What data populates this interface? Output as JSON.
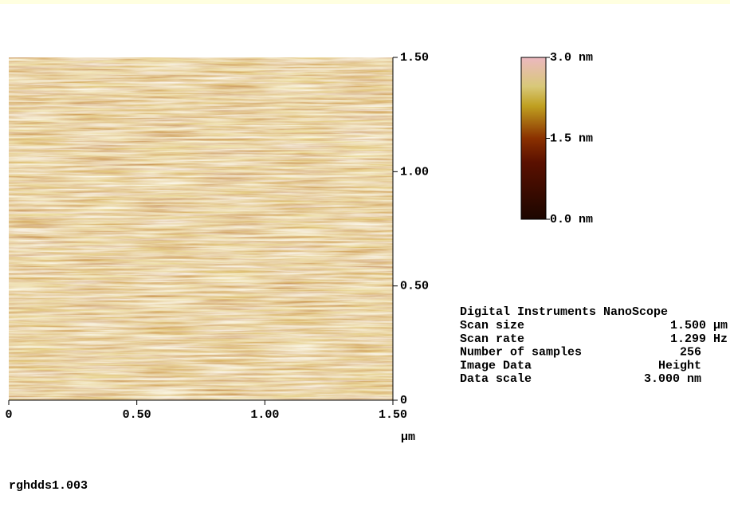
{
  "image": {
    "y_ticks": [
      "1.50",
      "1.00",
      "0.50",
      "0"
    ],
    "x_ticks": [
      "0",
      "0.50",
      "1.00",
      "1.50"
    ],
    "x_unit": "µm"
  },
  "color_scale": {
    "labels": [
      "3.0 nm",
      "1.5 nm",
      "0.0 nm"
    ]
  },
  "info": {
    "title": "Digital Instruments NanoScope",
    "rows": [
      [
        "Scan size",
        "1.500 µm"
      ],
      [
        "Scan rate",
        "1.299 Hz"
      ],
      [
        "Number of samples",
        "256"
      ],
      [
        "Image Data",
        "Height"
      ],
      [
        "Data scale",
        "3.000 nm"
      ]
    ]
  },
  "filename": "rghdds1.003"
}
